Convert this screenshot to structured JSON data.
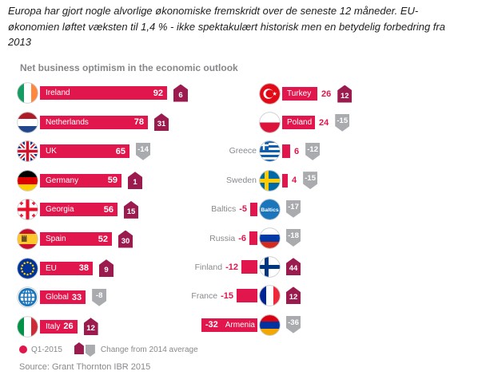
{
  "header": {
    "text": "Europa har gjort nogle alvorlige økonomiske fremskridt over de seneste 12 måneder. EU-\nøkonomien løftet væksten til 1,4 % - ikke spektakulært historisk men en betydelig forbedring fra\n2013"
  },
  "chart_data": {
    "type": "bar",
    "title": "Net business optimism in the economic outlook",
    "value_label": "Q1-2015",
    "change_label": "Change from 2014 average",
    "source": "Source: Grant Thornton IBR 2015",
    "legend_position": "bottom-left",
    "orientation": "horizontal",
    "series": [
      {
        "name": "column-left",
        "rows": [
          {
            "country": "Ireland",
            "value": 92,
            "change": 6,
            "flag": "ireland"
          },
          {
            "country": "Netherlands",
            "value": 78,
            "change": 31,
            "flag": "netherlands"
          },
          {
            "country": "UK",
            "value": 65,
            "change": -14,
            "flag": "uk"
          },
          {
            "country": "Germany",
            "value": 59,
            "change": 1,
            "flag": "germany"
          },
          {
            "country": "Georgia",
            "value": 56,
            "change": 15,
            "flag": "georgia"
          },
          {
            "country": "Spain",
            "value": 52,
            "change": 30,
            "flag": "spain"
          },
          {
            "country": "EU",
            "value": 38,
            "change": 9,
            "flag": "eu"
          },
          {
            "country": "Global",
            "value": 33,
            "change": -8,
            "flag": "global"
          },
          {
            "country": "Italy",
            "value": 26,
            "change": 12,
            "flag": "italy"
          }
        ]
      },
      {
        "name": "column-right",
        "rows": [
          {
            "country": "Turkey",
            "value": 26,
            "change": 12,
            "flag": "turkey"
          },
          {
            "country": "Poland",
            "value": 24,
            "change": -15,
            "flag": "poland"
          },
          {
            "country": "Greece",
            "value": 6,
            "change": -12,
            "flag": "greece"
          },
          {
            "country": "Sweden",
            "value": 4,
            "change": -15,
            "flag": "sweden"
          },
          {
            "country": "Baltics",
            "value": -5,
            "change": -17,
            "flag": "baltics"
          },
          {
            "country": "Russia",
            "value": -6,
            "change": -18,
            "flag": "russia"
          },
          {
            "country": "Finland",
            "value": -12,
            "change": 44,
            "flag": "finland"
          },
          {
            "country": "France",
            "value": -15,
            "change": 12,
            "flag": "france"
          },
          {
            "country": "Armenia",
            "value": -32,
            "change": -36,
            "flag": "armenia"
          }
        ]
      }
    ],
    "colors": {
      "bar": "#e0164c",
      "up": "#9c1b4f",
      "down": "#a9abae",
      "gray_text": "#87898c"
    }
  },
  "flags": {
    "ireland": {
      "type": "v",
      "colors": [
        "#169b62",
        "#ffffff",
        "#ff883e"
      ]
    },
    "netherlands": {
      "type": "h",
      "colors": [
        "#ae1c28",
        "#ffffff",
        "#21468b"
      ]
    },
    "uk": {
      "type": "uk",
      "colors": [
        "#00247d",
        "#ffffff",
        "#cf142b"
      ]
    },
    "germany": {
      "type": "h",
      "colors": [
        "#000000",
        "#dd0000",
        "#ffce00"
      ]
    },
    "georgia": {
      "type": "georgia",
      "colors": [
        "#ffffff",
        "#e8112d"
      ]
    },
    "spain": {
      "type": "spain",
      "colors": [
        "#c8102e",
        "#ffc72c",
        "#6b4f27"
      ]
    },
    "eu": {
      "type": "eu",
      "colors": [
        "#003399",
        "#ffcc00"
      ]
    },
    "global": {
      "type": "globe",
      "colors": [
        "#ffffff",
        "#1b75bb"
      ]
    },
    "italy": {
      "type": "v",
      "colors": [
        "#009246",
        "#ffffff",
        "#ce2b37"
      ]
    },
    "turkey": {
      "type": "turkey",
      "colors": [
        "#e30a17",
        "#ffffff"
      ]
    },
    "poland": {
      "type": "h",
      "colors": [
        "#ffffff",
        "#dc143c"
      ]
    },
    "greece": {
      "type": "greece",
      "colors": [
        "#0d5eaf",
        "#ffffff"
      ]
    },
    "sweden": {
      "type": "nordic",
      "colors": [
        "#006aa7",
        "#fecc00"
      ]
    },
    "baltics": {
      "type": "text",
      "colors": [
        "#1b75bb",
        "#ffffff"
      ],
      "text": "Baltics"
    },
    "russia": {
      "type": "h",
      "colors": [
        "#ffffff",
        "#0039a6",
        "#d52b1e"
      ]
    },
    "finland": {
      "type": "nordic",
      "colors": [
        "#ffffff",
        "#003580"
      ]
    },
    "france": {
      "type": "v",
      "colors": [
        "#002395",
        "#ffffff",
        "#ed2939"
      ]
    },
    "armenia": {
      "type": "h",
      "colors": [
        "#d90012",
        "#0033a0",
        "#f2a800"
      ]
    }
  }
}
